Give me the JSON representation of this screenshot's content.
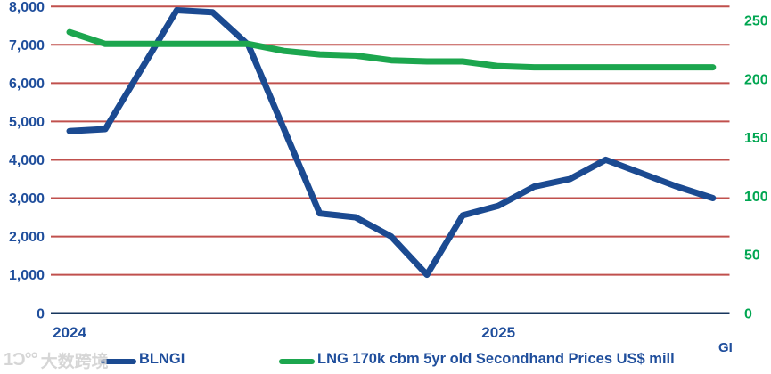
{
  "watermark": {
    "logo": "1Ɔ°°",
    "text": "大数跨境"
  },
  "footer": {
    "gi_label": "GI"
  },
  "chart_data": {
    "type": "line",
    "title": "",
    "xlabel": "",
    "ylabel_left": "",
    "ylabel_right": "",
    "grid": "horizontal",
    "gridline_color": "#c0504d",
    "axis_line_color": "#17365d",
    "x_tick_color": "#1f4e9c",
    "x_ticks": [
      {
        "label": "2024",
        "point_index": 0
      },
      {
        "label": "2025",
        "point_index": 12
      }
    ],
    "left_axis": {
      "min": 0,
      "max": 8000,
      "step": 1000,
      "tick_labels": [
        "0",
        "1,000",
        "2,000",
        "3,000",
        "4,000",
        "5,000",
        "6,000",
        "7,000",
        "8,000"
      ],
      "label_color": "#1f4e9c"
    },
    "right_axis": {
      "min": 0,
      "max": 250,
      "step": 50,
      "tick_labels": [
        "0",
        "50",
        "100",
        "150",
        "200",
        "250"
      ],
      "label_color": "#00a651"
    },
    "legend_position": "bottom",
    "series": [
      {
        "name": "BLNGI",
        "axis": "left",
        "color": "#1b4a91",
        "values": [
          4750,
          4800,
          6350,
          7900,
          7850,
          7000,
          4800,
          2600,
          2500,
          2000,
          1000,
          2550,
          2800,
          3300,
          3500,
          4000,
          3650,
          3300,
          3000
        ]
      },
      {
        "name": "LNG 170k cbm 5yr old Secondhand Prices US$ mill",
        "axis": "right",
        "color": "#1ca64e",
        "values": [
          240,
          230,
          230,
          230,
          230,
          230,
          224,
          221,
          220,
          216,
          215,
          215,
          211,
          210,
          210,
          210,
          210,
          210,
          210
        ]
      }
    ]
  }
}
